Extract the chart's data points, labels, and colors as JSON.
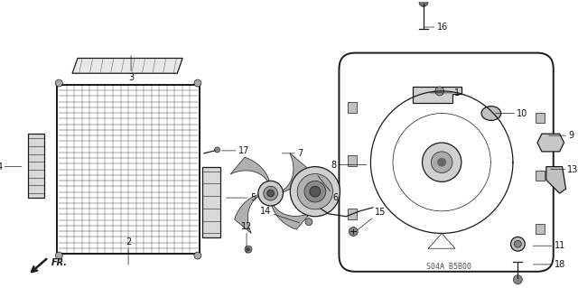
{
  "background_color": "#ffffff",
  "figure_width": 6.4,
  "figure_height": 3.19,
  "dpi": 100,
  "line_color": "#1a1a1a",
  "label_color": "#111111",
  "label_fontsize": 7,
  "watermark": "S04A B5B00",
  "watermark_fontsize": 6
}
